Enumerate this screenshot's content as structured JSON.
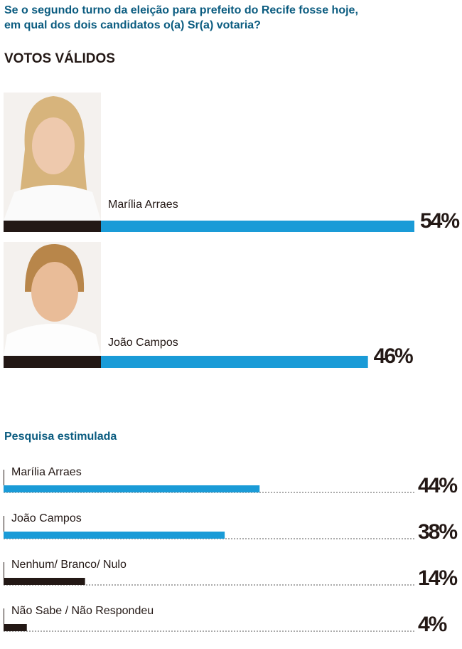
{
  "chart_data": [
    {
      "type": "bar",
      "title": "Se o segundo turno da eleição para prefeito do Recife fosse hoje, em qual dos dois candidatos o(a) Sr(a) votaria?",
      "subtitle": "VOTOS VÁLIDOS",
      "categories": [
        "Marília Arraes",
        "João Campos"
      ],
      "values": [
        54,
        46
      ],
      "value_labels": [
        "54%",
        "46%"
      ],
      "color": "#1a9bd7",
      "xlim": [
        0,
        54
      ]
    },
    {
      "type": "bar",
      "title": "Pesquisa estimulada",
      "categories": [
        "Marília Arraes",
        "João Campos",
        "Nenhum/ Branco/ Nulo",
        "Não Sabe / Não Respondeu"
      ],
      "values": [
        44,
        38,
        14,
        4
      ],
      "value_labels": [
        "44%",
        "38%",
        "14%",
        "4%"
      ],
      "colors": [
        "#1a9bd7",
        "#1a9bd7",
        "#231815",
        "#231815"
      ],
      "xlim": [
        0,
        70.6
      ]
    }
  ]
}
